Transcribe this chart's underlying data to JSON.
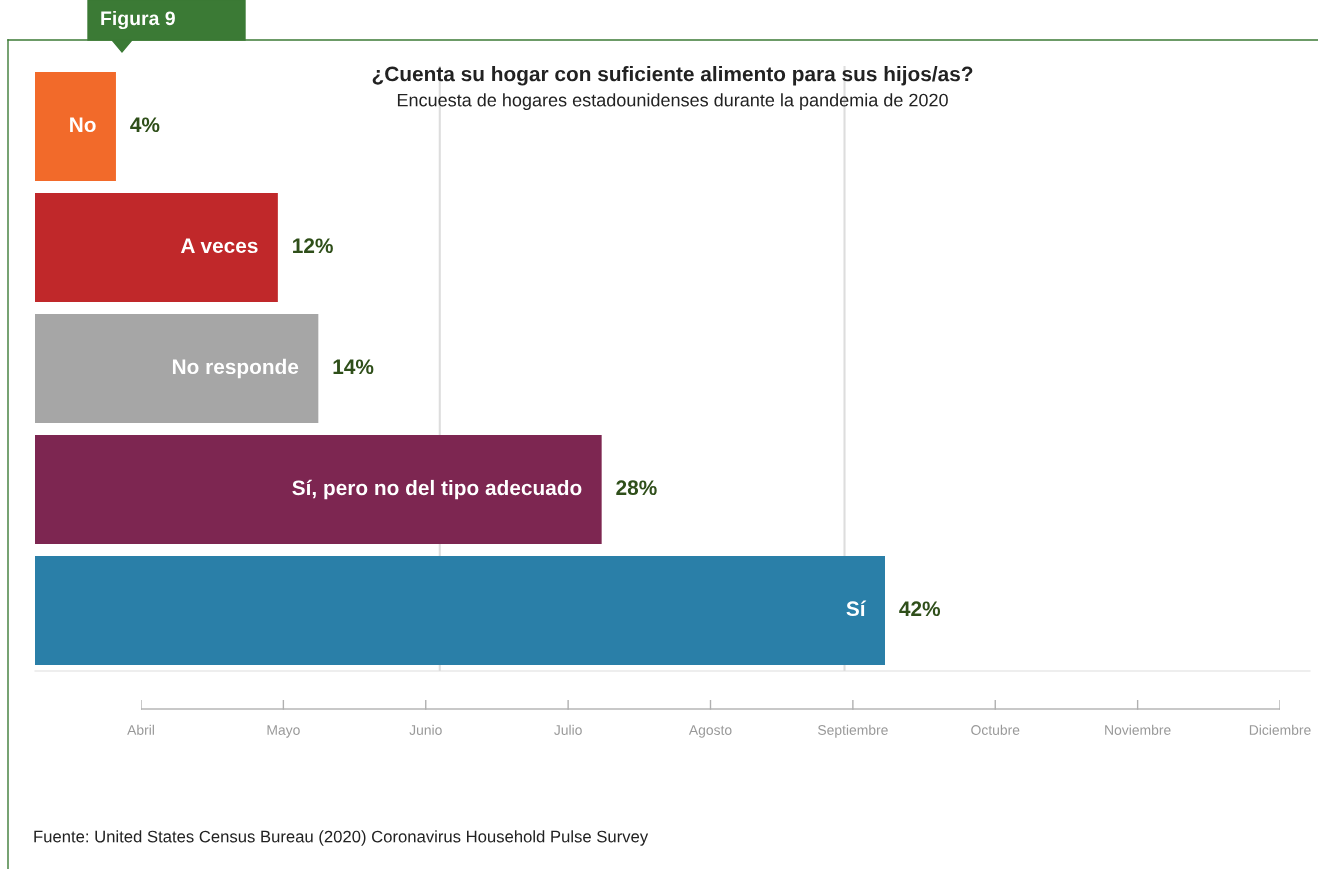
{
  "chart_data": [
    {
      "type": "bar",
      "orientation": "horizontal",
      "title": "¿Cuenta su hogar con suficiente alimento para sus hijos/as?",
      "subtitle": "Encuesta de hogares estadounidenses durante la pandemia de 2020",
      "categories": [
        "No",
        "A veces",
        "No responde",
        "Sí, pero no del tipo adecuado",
        "Sí"
      ],
      "values": [
        4,
        12,
        14,
        28,
        42
      ],
      "colors": [
        "#f26a2a",
        "#c0282a",
        "#a6a6a6",
        "#7d2651",
        "#2a7fa8"
      ],
      "value_labels": [
        "4%",
        "12%",
        "14%",
        "28%",
        "42%"
      ],
      "xlim": [
        0,
        63
      ],
      "tick_labels": false,
      "ref_lines": [
        {
          "axis": "x",
          "value": 20,
          "color": "#dddddd"
        },
        {
          "axis": "x",
          "value": 40,
          "color": "#dddddd"
        }
      ],
      "annotations": [
        "Figura 9",
        "Fuente: United States Census Bureau (2020) Coronavirus Household Pulse Survey"
      ]
    },
    {
      "type": "other",
      "categories": [
        "Abril",
        "Mayo",
        "Junio",
        "Julio",
        "Agosto",
        "Septiembre",
        "Octubre",
        "Noviembre",
        "Diciembre"
      ]
    }
  ]
}
